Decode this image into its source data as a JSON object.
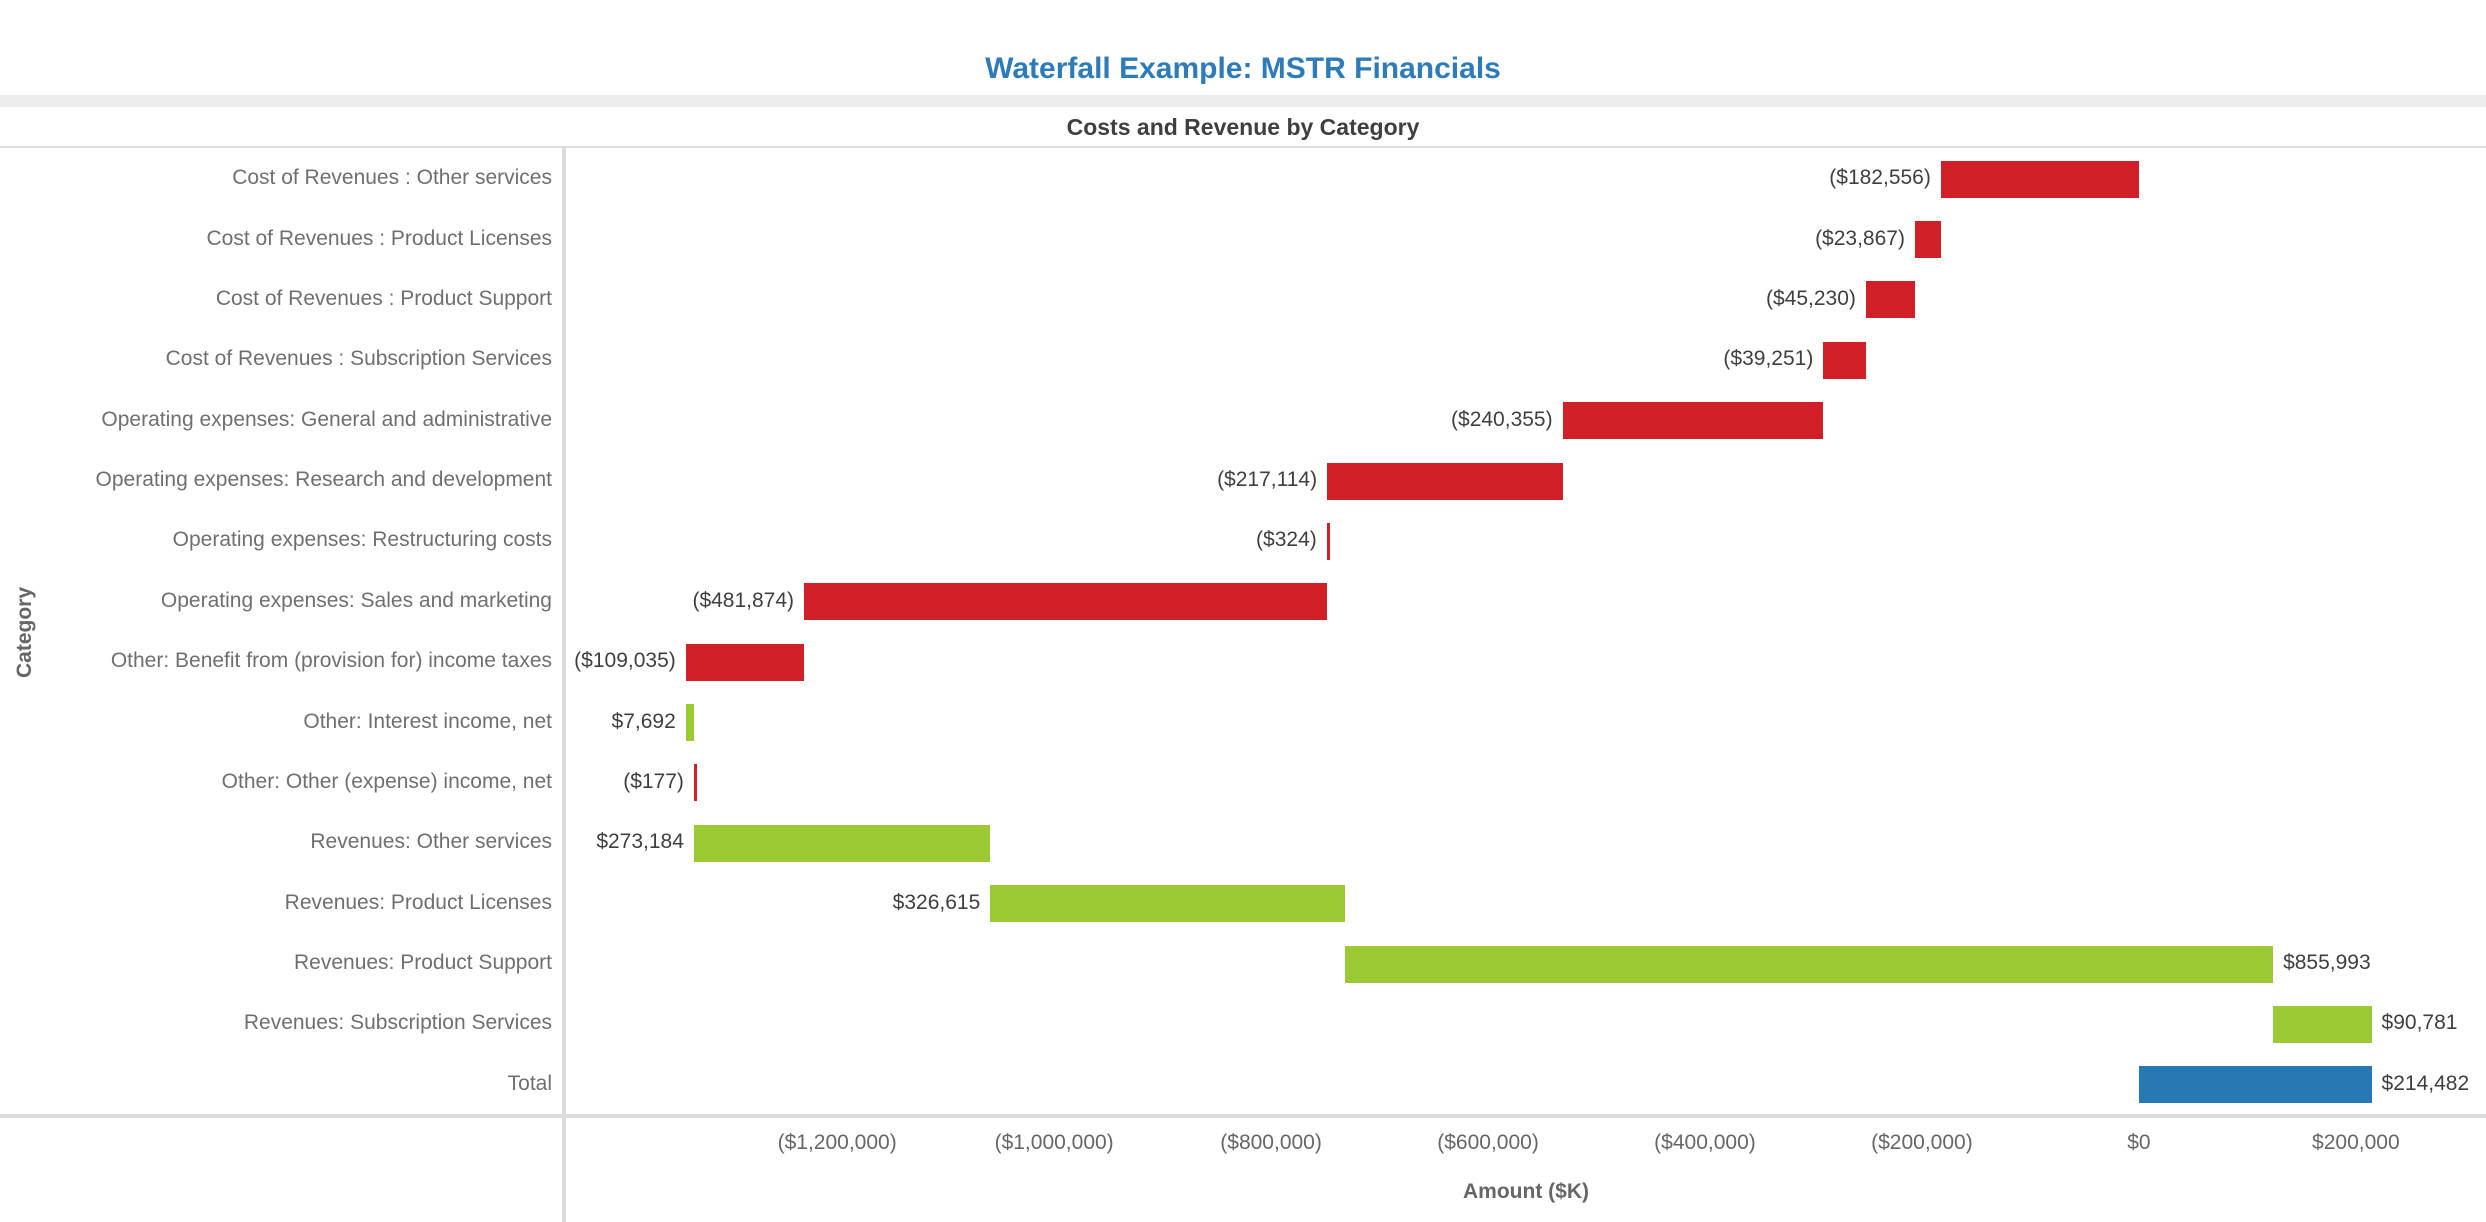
{
  "header": {
    "title": "Waterfall Example: MSTR Financials",
    "subtitle": "Costs and Revenue by Category"
  },
  "colors": {
    "negative_bar": "#d11f27",
    "positive_bar": "#9bca34",
    "total_bar": "#2878b2",
    "title_accent": "#2e7bba",
    "axis_line": "#dcdcdc",
    "category_text": "#6f6f6f",
    "value_text": "#3f3f3f",
    "tick_text": "#666666"
  },
  "chart_data": {
    "type": "bar",
    "subtype": "waterfall",
    "orientation": "horizontal",
    "title": "Costs and Revenue by Category",
    "xlabel": "Amount ($K)",
    "ylabel": "Category",
    "xlim": [
      -1450000,
      320000
    ],
    "grid": false,
    "legend": false,
    "rows": [
      {
        "category": "Cost of Revenues : Other services",
        "value": -182556,
        "label": "($182,556)",
        "kind": "negative",
        "label_side": "left"
      },
      {
        "category": "Cost of Revenues : Product Licenses",
        "value": -23867,
        "label": "($23,867)",
        "kind": "negative",
        "label_side": "left"
      },
      {
        "category": "Cost of Revenues : Product Support",
        "value": -45230,
        "label": "($45,230)",
        "kind": "negative",
        "label_side": "left"
      },
      {
        "category": "Cost of Revenues : Subscription Services",
        "value": -39251,
        "label": "($39,251)",
        "kind": "negative",
        "label_side": "left"
      },
      {
        "category": "Operating expenses: General and administrative",
        "value": -240355,
        "label": "($240,355)",
        "kind": "negative",
        "label_side": "left"
      },
      {
        "category": "Operating expenses: Research and development",
        "value": -217114,
        "label": "($217,114)",
        "kind": "negative",
        "label_side": "left"
      },
      {
        "category": "Operating expenses: Restructuring costs",
        "value": -324,
        "label": "($324)",
        "kind": "negative",
        "label_side": "left"
      },
      {
        "category": "Operating expenses: Sales and marketing",
        "value": -481874,
        "label": "($481,874)",
        "kind": "negative",
        "label_side": "left"
      },
      {
        "category": "Other: Benefit from (provision for) income taxes",
        "value": -109035,
        "label": "($109,035)",
        "kind": "negative",
        "label_side": "left"
      },
      {
        "category": "Other: Interest income, net",
        "value": 7692,
        "label": "$7,692",
        "kind": "positive",
        "label_side": "left"
      },
      {
        "category": "Other: Other (expense) income, net",
        "value": -177,
        "label": "($177)",
        "kind": "negative",
        "label_side": "left"
      },
      {
        "category": "Revenues: Other services",
        "value": 273184,
        "label": "$273,184",
        "kind": "positive",
        "label_side": "left"
      },
      {
        "category": "Revenues: Product Licenses",
        "value": 326615,
        "label": "$326,615",
        "kind": "positive",
        "label_side": "left"
      },
      {
        "category": "Revenues: Product Support",
        "value": 855993,
        "label": "$855,993",
        "kind": "positive",
        "label_side": "right"
      },
      {
        "category": "Revenues: Subscription Services",
        "value": 90781,
        "label": "$90,781",
        "kind": "positive",
        "label_side": "right"
      },
      {
        "category": "Total",
        "value": 214482,
        "label": "$214,482",
        "kind": "total",
        "label_side": "right"
      }
    ],
    "x_ticks": [
      {
        "value": -1200000,
        "label": "($1,200,000)"
      },
      {
        "value": -1000000,
        "label": "($1,000,000)"
      },
      {
        "value": -800000,
        "label": "($800,000)"
      },
      {
        "value": -600000,
        "label": "($600,000)"
      },
      {
        "value": -400000,
        "label": "($400,000)"
      },
      {
        "value": -200000,
        "label": "($200,000)"
      },
      {
        "value": 0,
        "label": "$0"
      },
      {
        "value": 200000,
        "label": "$200,000"
      }
    ]
  }
}
